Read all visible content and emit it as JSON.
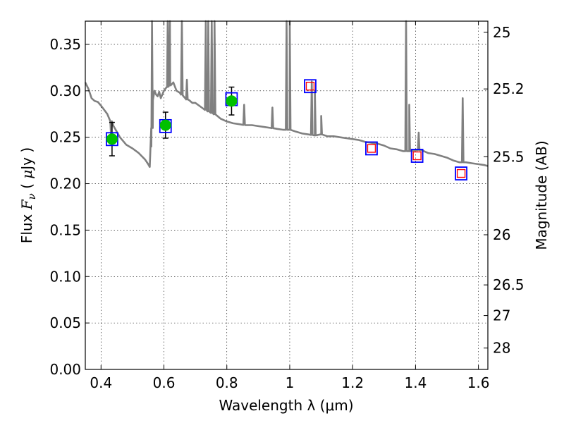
{
  "chart_data": {
    "type": "scatter",
    "xlabel": "Wavelength  λ (μm)",
    "ylabel_parts": [
      "Flux  ",
      "F",
      "ν",
      "  ( ",
      "μ",
      "Jy )"
    ],
    "ylabel_right": "Magnitude (AB)",
    "xlim": [
      0.35,
      1.63
    ],
    "ylim": [
      0.0,
      0.375
    ],
    "grid": true,
    "x_ticks": [
      0.4,
      0.6,
      0.8,
      1.0,
      1.2,
      1.4,
      1.6
    ],
    "x_tick_labels": [
      "0.4",
      "0.6",
      "0.8",
      "1",
      "1.2",
      "1.4",
      "1.6"
    ],
    "y_ticks": [
      0.0,
      0.05,
      0.1,
      0.15,
      0.2,
      0.25,
      0.3,
      0.35
    ],
    "y_tick_labels": [
      "0.00",
      "0.05",
      "0.10",
      "0.15",
      "0.20",
      "0.25",
      "0.30",
      "0.35"
    ],
    "right_ticks": [
      {
        "label": "25",
        "flux": 0.363
      },
      {
        "label": "25.2",
        "flux": 0.302
      },
      {
        "label": "25.5",
        "flux": 0.229
      },
      {
        "label": "26",
        "flux": 0.145
      },
      {
        "label": "26.5",
        "flux": 0.091
      },
      {
        "label": "27",
        "flux": 0.058
      },
      {
        "label": "28",
        "flux": 0.023
      }
    ],
    "series": [
      {
        "kind": "model_spectrum",
        "color": "#808080",
        "x": [
          0.35,
          0.36,
          0.37,
          0.38,
          0.39,
          0.4,
          0.42,
          0.44,
          0.46,
          0.48,
          0.5,
          0.52,
          0.54,
          0.55,
          0.555,
          0.56,
          0.565,
          0.57,
          0.575,
          0.58,
          0.585,
          0.59,
          0.6,
          0.61,
          0.62,
          0.63,
          0.64,
          0.65,
          0.66,
          0.67,
          0.68,
          0.69,
          0.7,
          0.72,
          0.74,
          0.76,
          0.78,
          0.8,
          0.82,
          0.84,
          0.86,
          0.88,
          0.9,
          0.92,
          0.94,
          0.96,
          0.98,
          1.0,
          1.02,
          1.04,
          1.06,
          1.08,
          1.1,
          1.12,
          1.14,
          1.16,
          1.18,
          1.2,
          1.22,
          1.24,
          1.26,
          1.28,
          1.3,
          1.32,
          1.34,
          1.36,
          1.38,
          1.4,
          1.42,
          1.44,
          1.46,
          1.48,
          1.5,
          1.52,
          1.54,
          1.56,
          1.58,
          1.6,
          1.62,
          1.63
        ],
        "y": [
          0.309,
          0.302,
          0.292,
          0.289,
          0.288,
          0.284,
          0.275,
          0.262,
          0.25,
          0.242,
          0.238,
          0.233,
          0.226,
          0.221,
          0.218,
          0.24,
          0.29,
          0.3,
          0.296,
          0.294,
          0.299,
          0.292,
          0.3,
          0.304,
          0.306,
          0.309,
          0.3,
          0.298,
          0.295,
          0.291,
          0.29,
          0.287,
          0.287,
          0.282,
          0.278,
          0.275,
          0.27,
          0.267,
          0.265,
          0.264,
          0.263,
          0.263,
          0.262,
          0.261,
          0.26,
          0.259,
          0.258,
          0.258,
          0.256,
          0.254,
          0.253,
          0.252,
          0.253,
          0.251,
          0.251,
          0.25,
          0.249,
          0.248,
          0.247,
          0.245,
          0.244,
          0.243,
          0.241,
          0.238,
          0.237,
          0.235,
          0.235,
          0.236,
          0.236,
          0.233,
          0.232,
          0.23,
          0.228,
          0.225,
          0.223,
          0.223,
          0.222,
          0.221,
          0.22,
          0.219
        ],
        "spikes": [
          {
            "x": 0.432,
            "peak": 0.25
          },
          {
            "x": 0.562,
            "peak": 0.375
          },
          {
            "x": 0.612,
            "peak": 0.375
          },
          {
            "x": 0.619,
            "peak": 0.375
          },
          {
            "x": 0.657,
            "peak": 0.375
          },
          {
            "x": 0.673,
            "peak": 0.312
          },
          {
            "x": 0.733,
            "peak": 0.375
          },
          {
            "x": 0.741,
            "peak": 0.375
          },
          {
            "x": 0.752,
            "peak": 0.375
          },
          {
            "x": 0.761,
            "peak": 0.375
          },
          {
            "x": 0.855,
            "peak": 0.285
          },
          {
            "x": 0.945,
            "peak": 0.282
          },
          {
            "x": 0.99,
            "peak": 0.375
          },
          {
            "x": 1.0,
            "peak": 0.375
          },
          {
            "x": 1.07,
            "peak": 0.31
          },
          {
            "x": 1.08,
            "peak": 0.3
          },
          {
            "x": 1.1,
            "peak": 0.273
          },
          {
            "x": 1.37,
            "peak": 0.375
          },
          {
            "x": 1.38,
            "peak": 0.285
          },
          {
            "x": 1.41,
            "peak": 0.255
          },
          {
            "x": 1.55,
            "peak": 0.292
          }
        ]
      },
      {
        "kind": "observed_with_errors",
        "marker": "circle",
        "color": "#00c000",
        "x": [
          0.435,
          0.605,
          0.815
        ],
        "y": [
          0.248,
          0.263,
          0.289
        ],
        "yerr": [
          0.018,
          0.014,
          0.015
        ]
      },
      {
        "kind": "model_photometry",
        "marker": "square",
        "color": "#0000ff",
        "x": [
          0.435,
          0.605,
          0.815,
          1.065,
          1.26,
          1.405,
          1.545
        ],
        "y": [
          0.248,
          0.262,
          0.291,
          0.305,
          0.238,
          0.23,
          0.211
        ]
      },
      {
        "kind": "upper_photometry",
        "marker": "square-small",
        "color": "#ff0000",
        "x": [
          1.065,
          1.26,
          1.405,
          1.545
        ],
        "y": [
          0.305,
          0.238,
          0.23,
          0.211
        ]
      }
    ]
  }
}
